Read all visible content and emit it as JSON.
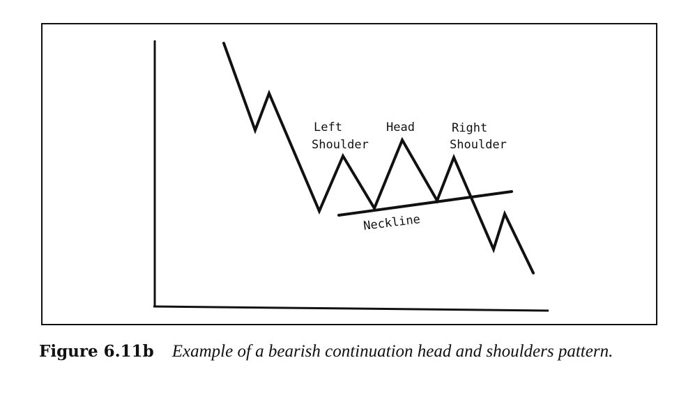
{
  "figure": {
    "labels": {
      "left_shoulder_line1": "Left",
      "left_shoulder_line2": "Shoulder",
      "head": "Head",
      "right_shoulder_line1": "Right",
      "right_shoulder_line2": "Shoulder",
      "neckline": "Neckline"
    }
  },
  "caption": {
    "label": "Figure 6.11b",
    "text": "Example of a bearish continuation head and shoulders pattern."
  },
  "colors": {
    "ink": "#111111",
    "background": "#ffffff"
  }
}
